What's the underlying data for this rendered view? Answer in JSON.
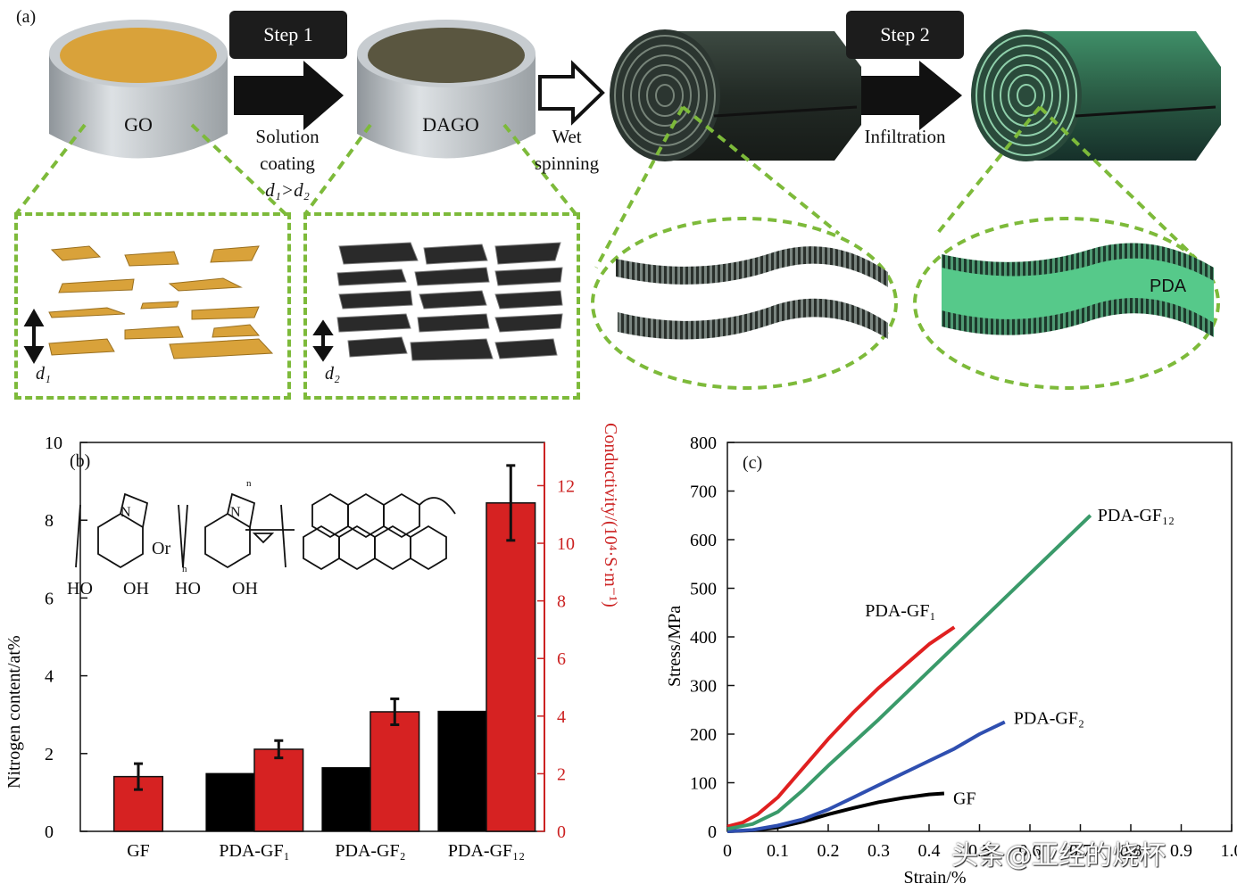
{
  "panel_a": {
    "tag": "(a)",
    "step1": "Step 1",
    "step2": "Step 2",
    "tub1_label": "GO",
    "tub2_label": "DAGO",
    "arrow1_caption_1": "Solution",
    "arrow1_caption_2": "coating",
    "relation": "d₁>d₂",
    "arrow2_caption_1": "Wet",
    "arrow2_caption_2": "spinning",
    "arrow3_caption": "Infiltration",
    "inset1_spacing": "d₁",
    "inset2_spacing": "d₂",
    "pda_label": "PDA",
    "colors": {
      "go": "#d9a23a",
      "dago": "#5a5640",
      "fiber": "#2d3a33",
      "pda": "#56c98a",
      "dash": "#7dba3a"
    }
  },
  "panel_b": {
    "tag": "(b)",
    "chem": {
      "ho1": "HO",
      "oh1": "OH",
      "or": "Or",
      "ho2": "HO",
      "oh2": "OH",
      "n": "N",
      "sub_n": "n"
    },
    "left_axis_label": "Nitrogen content/at%",
    "right_axis_label": "Conductivity/(10⁴·S·m⁻¹)",
    "left_ticks": [
      "0",
      "2",
      "4",
      "6",
      "8",
      "10"
    ],
    "right_ticks": [
      "0",
      "2",
      "4",
      "6",
      "8",
      "10",
      "12"
    ],
    "colors": {
      "nitrogen": "#000000",
      "conductivity": "#d62222",
      "right_axis": "#cc2222"
    }
  },
  "panel_c": {
    "tag": "(c)",
    "y_ticks": [
      "0",
      "100",
      "200",
      "300",
      "400",
      "500",
      "600",
      "700",
      "800"
    ],
    "x_ticks": [
      "0",
      "0.1",
      "0.2",
      "0.3",
      "0.4",
      "0.5",
      "0.6",
      "0.7",
      "0.8",
      "0.9",
      "1.0"
    ],
    "colors": {
      "GF": "#000000",
      "PDA-GF1": "#e02020",
      "PDA-GF2": "#2f4fb0",
      "PDA-GF12": "#3a9a6a"
    }
  },
  "chart_data": [
    {
      "type": "bar",
      "categories": [
        "GF",
        "PDA-GF₁",
        "PDA-GF₂",
        "PDA-GF₁₂"
      ],
      "xlabel": "",
      "ylabel": "Nitrogen content/at%",
      "ylim": [
        0,
        10
      ],
      "y2label": "Conductivity/(10⁴·S·m⁻¹)",
      "y2lim": [
        0,
        13.5
      ],
      "series": [
        {
          "axis": "left",
          "values": [
            null,
            1.5,
            1.65,
            3.1
          ],
          "color": "#000000"
        },
        {
          "axis": "right",
          "values": [
            1.9,
            2.85,
            4.15,
            11.4
          ],
          "errors": [
            0.45,
            0.3,
            0.45,
            1.3
          ],
          "color": "#d62222"
        }
      ]
    },
    {
      "type": "line",
      "xlabel": "Strain/%",
      "ylabel": "Stress/MPa",
      "xlim": [
        0,
        1.0
      ],
      "ylim": [
        0,
        800
      ],
      "series": [
        {
          "name": "GF",
          "x": [
            0,
            0.05,
            0.1,
            0.15,
            0.2,
            0.25,
            0.3,
            0.35,
            0.4,
            0.43
          ],
          "y": [
            0,
            2,
            8,
            20,
            35,
            48,
            60,
            69,
            76,
            78
          ]
        },
        {
          "name": "PDA-GF₁",
          "x": [
            0,
            0.03,
            0.06,
            0.1,
            0.15,
            0.2,
            0.25,
            0.3,
            0.35,
            0.4,
            0.45
          ],
          "y": [
            10,
            18,
            35,
            70,
            130,
            190,
            245,
            295,
            340,
            385,
            420
          ]
        },
        {
          "name": "PDA-GF₂",
          "x": [
            0,
            0.05,
            0.1,
            0.15,
            0.2,
            0.25,
            0.3,
            0.35,
            0.4,
            0.45,
            0.5,
            0.55
          ],
          "y": [
            0,
            3,
            12,
            25,
            45,
            70,
            95,
            120,
            145,
            170,
            200,
            225
          ]
        },
        {
          "name": "PDA-GF₁₂",
          "x": [
            0,
            0.05,
            0.1,
            0.15,
            0.2,
            0.3,
            0.4,
            0.5,
            0.6,
            0.72
          ],
          "y": [
            5,
            15,
            40,
            85,
            135,
            230,
            330,
            430,
            530,
            650
          ]
        }
      ]
    }
  ]
}
